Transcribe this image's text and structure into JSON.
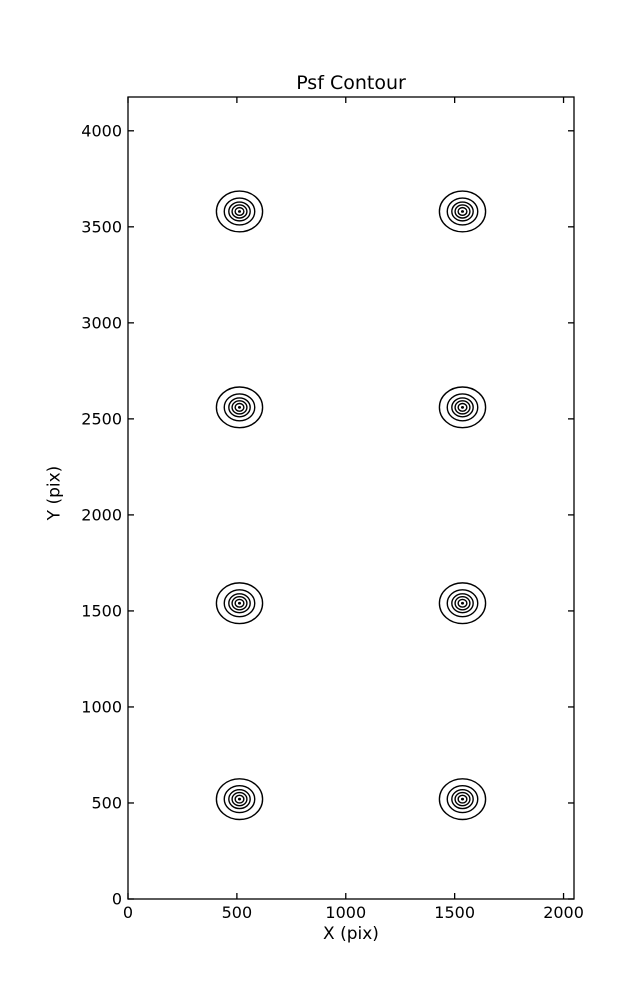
{
  "figure": {
    "background": "#ffffff",
    "ink_color": "#000000"
  },
  "chart_data": {
    "type": "contour",
    "title": "Psf Contour",
    "xlabel": "X (pix)",
    "ylabel": "Y (pix)",
    "xlim": [
      0,
      2048
    ],
    "ylim": [
      0,
      4176
    ],
    "xticks": [
      0,
      500,
      1000,
      1500,
      2000
    ],
    "yticks": [
      0,
      500,
      1000,
      1500,
      2000,
      2500,
      3000,
      3500,
      4000
    ],
    "grid": false,
    "legend": null,
    "tick_direction": "in",
    "centers": [
      {
        "x": 512,
        "y": 520
      },
      {
        "x": 1536,
        "y": 520
      },
      {
        "x": 512,
        "y": 1540
      },
      {
        "x": 1536,
        "y": 1540
      },
      {
        "x": 512,
        "y": 2560
      },
      {
        "x": 1536,
        "y": 2560
      },
      {
        "x": 512,
        "y": 3580
      },
      {
        "x": 1536,
        "y": 3580
      }
    ],
    "contour_radii": [
      106,
      70,
      49,
      34,
      20
    ],
    "center_dot_radius": 7
  }
}
